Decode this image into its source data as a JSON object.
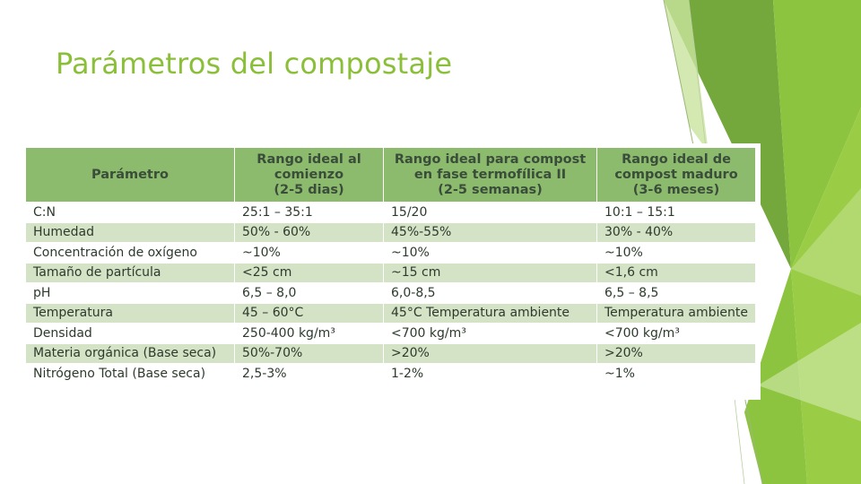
{
  "slide": {
    "title": "Parámetros del compostaje",
    "accent_color": "#8bbf3a"
  },
  "table": {
    "headers": [
      [
        "Parámetro"
      ],
      [
        "Rango ideal al",
        "comienzo",
        "(2-5 dias)"
      ],
      [
        "Rango ideal para compost",
        "en fase termofílica II",
        "(2-5 semanas)"
      ],
      [
        "Rango ideal de",
        "compost maduro",
        "(3-6 meses)"
      ]
    ],
    "rows": [
      [
        "C:N",
        "25:1 – 35:1",
        "15/20",
        "10:1 – 15:1"
      ],
      [
        "Humedad",
        "50% - 60%",
        "45%-55%",
        "30% - 40%"
      ],
      [
        "Concentración de oxígeno",
        "~10%",
        "~10%",
        "~10%"
      ],
      [
        "Tamaño de partícula",
        "<25 cm",
        "~15 cm",
        "<1,6 cm"
      ],
      [
        "pH",
        "6,5 – 8,0",
        "6,0-8,5",
        "6,5 – 8,5"
      ],
      [
        "Temperatura",
        "45 – 60°C",
        "45°C Temperatura ambiente",
        "Temperatura ambiente"
      ],
      [
        "Densidad",
        "250-400 kg/m³",
        "<700 kg/m³",
        "<700 kg/m³"
      ],
      [
        "Materia orgánica (Base seca)",
        "50%-70%",
        ">20%",
        ">20%"
      ],
      [
        "Nitrógeno Total (Base seca)",
        "2,5-3%",
        "1-2%",
        "~1%"
      ]
    ]
  }
}
